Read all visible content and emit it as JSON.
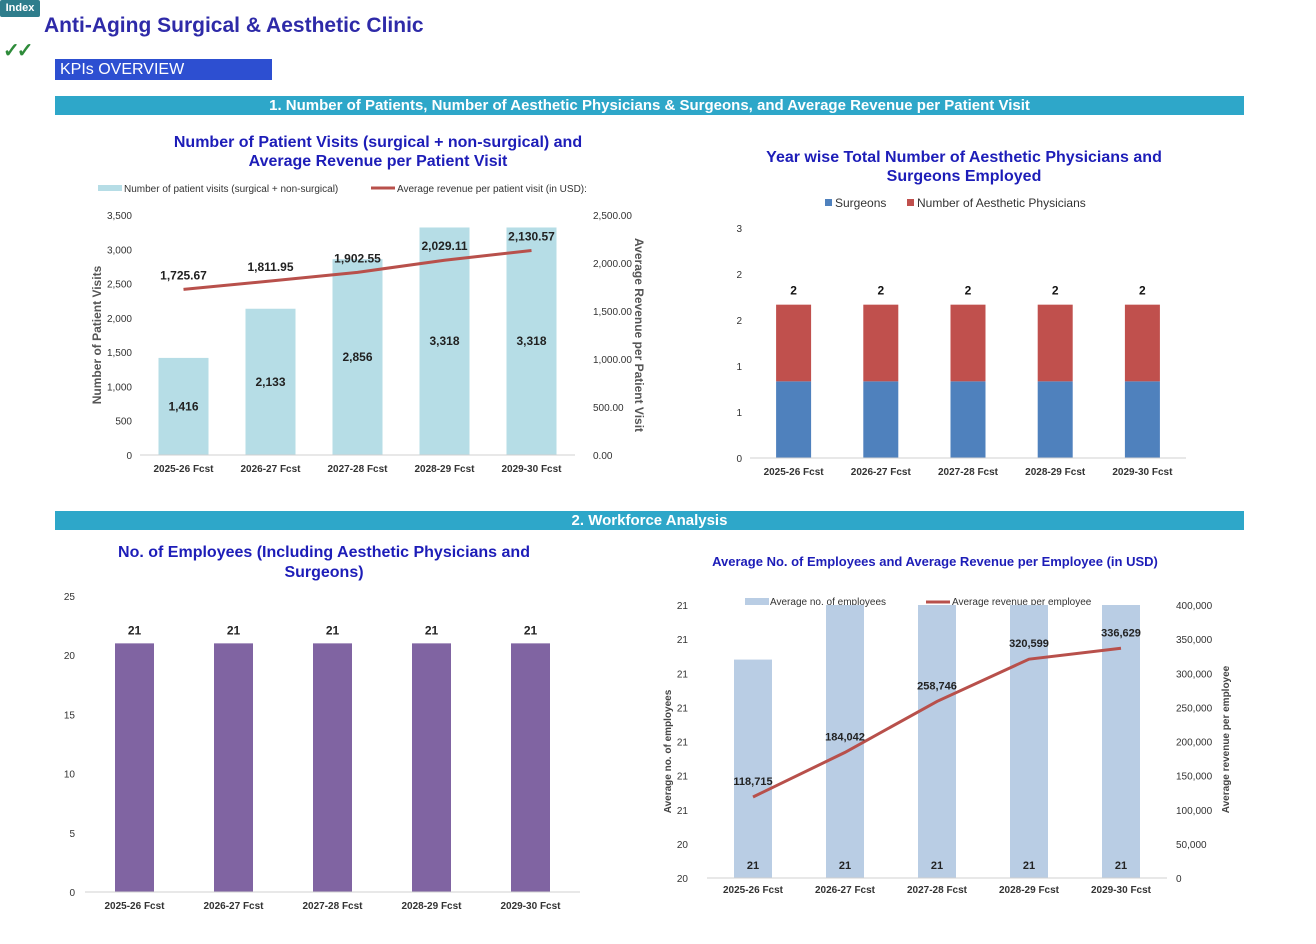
{
  "header": {
    "index_label": "Index",
    "check_icon": "check-icon",
    "title": "Anti-Aging Surgical & Aesthetic Clinic",
    "kpi_label": "KPIs OVERVIEW",
    "section1": "1. Number of Patients, Number of Aesthetic Physicians & Surgeons, and Average Revenue per Patient Visit",
    "section2": "2. Workforce Analysis"
  },
  "colors": {
    "section_band": "#2ea7c9",
    "kpi_box": "#2d4fd1",
    "title": "#2e2aa8",
    "chart_title": "#1d1db8",
    "bar_light_blue": "#b6dde6",
    "line_red": "#b8504b",
    "surgeons": "#4f81bd",
    "physicians": "#c0504d",
    "employees": "#8064a2",
    "avg_emp_bar": "#b9cde4"
  },
  "chart_data": [
    {
      "type": "bar",
      "title": "Number of Patient Visits (surgical + non-surgical) and Average Revenue per Patient Visit",
      "title_lines": [
        "Number of Patient Visits (surgical + non-surgical) and",
        "Average Revenue per Patient Visit"
      ],
      "categories": [
        "2025-26 Fcst",
        "2026-27 Fcst",
        "2027-28 Fcst",
        "2028-29 Fcst",
        "2029-30 Fcst"
      ],
      "series": [
        {
          "name": "Number of patient visits (surgical + non-surgical)",
          "kind": "bar",
          "axis": "left",
          "values": [
            1416,
            2133,
            2856,
            3318,
            3318
          ],
          "labels": [
            "1,416",
            "2,133",
            "2,856",
            "3,318",
            "3,318"
          ]
        },
        {
          "name": "Average revenue per patient visit (in USD):",
          "kind": "line",
          "axis": "right",
          "values": [
            1725.67,
            1811.95,
            1902.55,
            2029.11,
            2130.57
          ],
          "labels": [
            "1,725.67",
            "1,811.95",
            "1,902.55",
            "2,029.11",
            "2,130.57"
          ]
        }
      ],
      "ylabel": "Number of Patient Visits",
      "y2label": "Average Revenue per Patient Visit",
      "ylim": [
        0,
        3500
      ],
      "y2lim": [
        0,
        2500
      ],
      "yticks": [
        "0",
        "500",
        "1,000",
        "1,500",
        "2,000",
        "2,500",
        "3,000",
        "3,500"
      ],
      "y2ticks": [
        "0.00",
        "500.00",
        "1,000.00",
        "1,500.00",
        "2,000.00",
        "2,500.00"
      ],
      "legend": "top",
      "grid": false
    },
    {
      "type": "bar",
      "stacked": true,
      "title": "Year wise Total Number of Aesthetic Physicians and Surgeons Employed",
      "title_lines": [
        "Year wise Total Number of Aesthetic Physicians and",
        "Surgeons Employed"
      ],
      "categories": [
        "2025-26 Fcst",
        "2026-27 Fcst",
        "2027-28 Fcst",
        "2028-29 Fcst",
        "2029-30 Fcst"
      ],
      "series": [
        {
          "name": "Surgeons",
          "values": [
            1,
            1,
            1,
            1,
            1
          ]
        },
        {
          "name": "Number of Aesthetic Physicians",
          "values": [
            1,
            1,
            1,
            1,
            1
          ]
        }
      ],
      "total_labels": [
        "2",
        "2",
        "2",
        "2",
        "2"
      ],
      "ylim": [
        0,
        3
      ],
      "yticks": [
        "0",
        "1",
        "1",
        "2",
        "2",
        "3"
      ],
      "legend": "top",
      "grid": false
    },
    {
      "type": "bar",
      "title": "No. of Employees (Including Aesthetic Physicians and Surgeons)",
      "title_lines": [
        "No. of Employees (Including Aesthetic Physicians and",
        "Surgeons)"
      ],
      "categories": [
        "2025-26 Fcst",
        "2026-27 Fcst",
        "2027-28 Fcst",
        "2028-29 Fcst",
        "2029-30 Fcst"
      ],
      "values": [
        21,
        21,
        21,
        21,
        21
      ],
      "labels": [
        "21",
        "21",
        "21",
        "21",
        "21"
      ],
      "ylim": [
        0,
        25
      ],
      "yticks": [
        "0",
        "5",
        "10",
        "15",
        "20",
        "25"
      ],
      "grid": false
    },
    {
      "type": "bar",
      "title": "Average No. of Employees and Average Revenue per Employee (in USD)",
      "categories": [
        "2025-26 Fcst",
        "2026-27 Fcst",
        "2027-28 Fcst",
        "2028-29 Fcst",
        "2029-30 Fcst"
      ],
      "series": [
        {
          "name": "Average no. of employees",
          "kind": "bar",
          "axis": "left",
          "values": [
            20.8,
            21,
            21,
            21,
            21
          ],
          "labels": [
            "21",
            "21",
            "21",
            "21",
            "21"
          ]
        },
        {
          "name": "Average revenue per employee",
          "kind": "line",
          "axis": "right",
          "values": [
            118715,
            184042,
            258746,
            320599,
            336629
          ],
          "labels": [
            "118,715",
            "184,042",
            "258,746",
            "320,599",
            "336,629"
          ]
        }
      ],
      "ylabel": "Average no. of employees",
      "y2label": "Average revenue per employee",
      "ylim": [
        20,
        21
      ],
      "y2lim": [
        0,
        400000
      ],
      "yticks": [
        "20",
        "20",
        "21",
        "21",
        "21",
        "21",
        "21",
        "21",
        "21"
      ],
      "y2ticks": [
        "0",
        "50,000",
        "100,000",
        "150,000",
        "200,000",
        "250,000",
        "300,000",
        "350,000",
        "400,000"
      ],
      "legend": "top",
      "grid": false
    }
  ]
}
